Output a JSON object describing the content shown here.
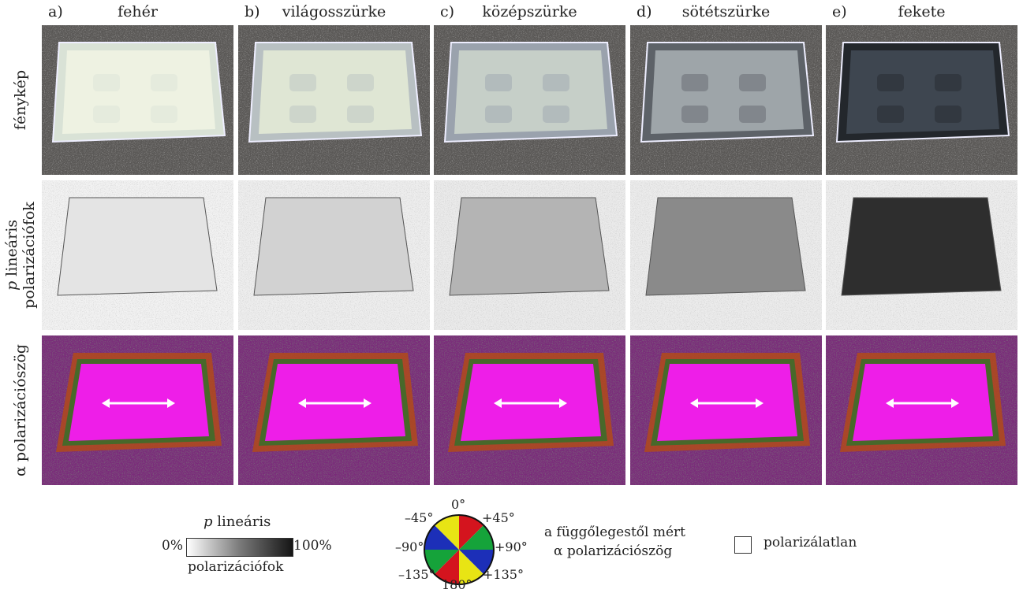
{
  "columns": [
    {
      "letter": "a)",
      "title": "fehér",
      "shade": "#eef2e2",
      "rim": "#d9e2d6",
      "p_bg": "#f2f2f2",
      "p_in": "#e4e4e4"
    },
    {
      "letter": "b)",
      "title": "világosszürke",
      "shade": "#dfe6d4",
      "rim": "#b8c0c2",
      "p_bg": "#eeeeee",
      "p_in": "#d2d2d2"
    },
    {
      "letter": "c)",
      "title": "középszürke",
      "shade": "#c6cfc8",
      "rim": "#9aa2ad",
      "p_bg": "#ebebeb",
      "p_in": "#b4b4b4"
    },
    {
      "letter": "d)",
      "title": "sötétszürke",
      "shade": "#9ea5a9",
      "rim": "#5d6268",
      "p_bg": "#ececec",
      "p_in": "#8a8a8a"
    },
    {
      "letter": "e)",
      "title": "fekete",
      "shade": "#3e4650",
      "rim": "#23272c",
      "p_bg": "#ededed",
      "p_in": "#2e2e2e"
    }
  ],
  "rows": {
    "photo": "fénykép",
    "degree_italic": "p",
    "degree_line1": "lineáris",
    "degree_line2": "polarizációfok",
    "angle": "α polarizációszög"
  },
  "legend": {
    "p_title_italic": "p",
    "p_title": "lineáris",
    "min": "0%",
    "max": "100%",
    "p_bottom": "polarizációfok",
    "angles": {
      "top": "0°",
      "tl": "–45°",
      "tr": "+45°",
      "left": "–90°",
      "right": "+90°",
      "bl": "–135°",
      "br": "+135°",
      "bottom": "180°"
    },
    "angle_desc1": "a függőlegestől mért",
    "angle_desc2": "α polarizációszög",
    "unpolarized": "polarizálatlan",
    "wheel_colors": [
      "#d4141e",
      "#15a33a",
      "#1c2fb8",
      "#e8e414",
      "#d4141e",
      "#15a33a",
      "#1c2fb8",
      "#e8e414"
    ]
  },
  "colors": {
    "magenta": "#ee1ee8",
    "ground_photo": "#5a5856",
    "ground_angle": "#7a2c7a"
  }
}
